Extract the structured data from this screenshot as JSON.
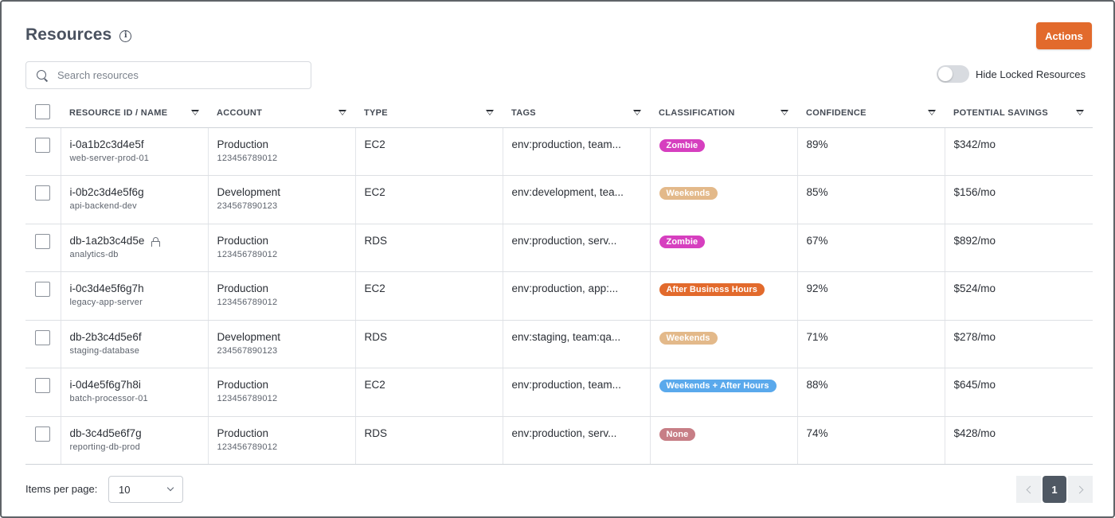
{
  "header": {
    "title": "Resources",
    "info_icon": "info-icon",
    "actions_label": "Actions",
    "actions_color": "#e26a2c"
  },
  "search": {
    "placeholder": "Search resources",
    "value": ""
  },
  "toggle": {
    "label": "Hide Locked Resources",
    "on": false
  },
  "table": {
    "columns": [
      "RESOURCE ID / NAME",
      "ACCOUNT",
      "TYPE",
      "TAGS",
      "CLASSIFICATION",
      "CONFIDENCE",
      "POTENTIAL SAVINGS"
    ],
    "rows": [
      {
        "id": "i-0a1b2c3d4e5f",
        "name": "web-server-prod-01",
        "locked": false,
        "account": "Production",
        "account_id": "123456789012",
        "type": "EC2",
        "tags": "env:production, team...",
        "classification": "Zombie",
        "class_color": "#d63fbf",
        "confidence": "89%",
        "savings": "$342/mo"
      },
      {
        "id": "i-0b2c3d4e5f6g",
        "name": "api-backend-dev",
        "locked": false,
        "account": "Development",
        "account_id": "234567890123",
        "type": "EC2",
        "tags": "env:development, tea...",
        "classification": "Weekends",
        "class_color": "#e3b98a",
        "confidence": "85%",
        "savings": "$156/mo"
      },
      {
        "id": "db-1a2b3c4d5e",
        "name": "analytics-db",
        "locked": true,
        "account": "Production",
        "account_id": "123456789012",
        "type": "RDS",
        "tags": "env:production, serv...",
        "classification": "Zombie",
        "class_color": "#d63fbf",
        "confidence": "67%",
        "savings": "$892/mo"
      },
      {
        "id": "i-0c3d4e5f6g7h",
        "name": "legacy-app-server",
        "locked": false,
        "account": "Production",
        "account_id": "123456789012",
        "type": "EC2",
        "tags": "env:production, app:...",
        "classification": "After Business Hours",
        "class_color": "#e26a2c",
        "confidence": "92%",
        "savings": "$524/mo"
      },
      {
        "id": "db-2b3c4d5e6f",
        "name": "staging-database",
        "locked": false,
        "account": "Development",
        "account_id": "234567890123",
        "type": "RDS",
        "tags": "env:staging, team:qa...",
        "classification": "Weekends",
        "class_color": "#e3b98a",
        "confidence": "71%",
        "savings": "$278/mo"
      },
      {
        "id": "i-0d4e5f6g7h8i",
        "name": "batch-processor-01",
        "locked": false,
        "account": "Production",
        "account_id": "123456789012",
        "type": "EC2",
        "tags": "env:production, team...",
        "classification": "Weekends + After Hours",
        "class_color": "#5aa9ec",
        "confidence": "88%",
        "savings": "$645/mo"
      },
      {
        "id": "db-3c4d5e6f7g",
        "name": "reporting-db-prod",
        "locked": false,
        "account": "Production",
        "account_id": "123456789012",
        "type": "RDS",
        "tags": "env:production, serv...",
        "classification": "None",
        "class_color": "#c77e86",
        "confidence": "74%",
        "savings": "$428/mo"
      }
    ]
  },
  "footer": {
    "items_per_page_label": "Items per page:",
    "items_per_page_value": "10",
    "current_page": "1"
  }
}
